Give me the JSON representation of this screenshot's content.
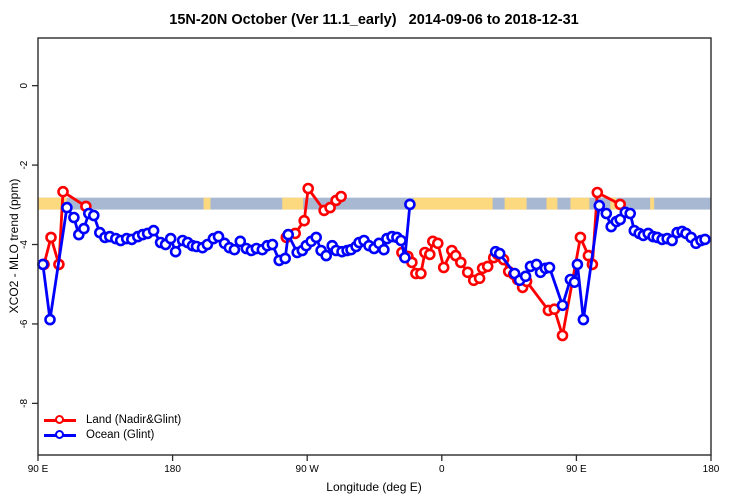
{
  "chart_data": {
    "type": "line",
    "title": "15N-20N October (Ver 11.1_early)   2014-09-06 to 2018-12-31",
    "xlabel": "Longitude (deg E)",
    "ylabel": "XCO2 - MLO trend (ppm)",
    "grid": false,
    "legend_position": "bottom-left",
    "xlim": [
      90,
      540
    ],
    "ylim": [
      -9.3,
      1.2
    ],
    "x_units_note": "longitude in degrees east, extended past 360 (axis wraps 90E-180-90W-0-90E-180)",
    "x_ticks": [
      {
        "value": 90,
        "label": "90 E"
      },
      {
        "value": 180,
        "label": "180"
      },
      {
        "value": 270,
        "label": "90 W"
      },
      {
        "value": 360,
        "label": "0"
      },
      {
        "value": 450,
        "label": "90 E"
      },
      {
        "value": 540,
        "label": "180"
      }
    ],
    "y_ticks": [
      {
        "value": 0,
        "label": "0"
      },
      {
        "value": -2,
        "label": "-2"
      },
      {
        "value": -4,
        "label": "-4"
      },
      {
        "value": -6,
        "label": "-6"
      },
      {
        "value": -8,
        "label": "-8"
      }
    ],
    "reference_band": {
      "color": "#a9b8d2",
      "from": -2.82,
      "to": -3.12,
      "highlight_color": "#fcd87e",
      "highlights": [
        [
          90,
          109.3
        ],
        [
          200.7,
          205.3
        ],
        [
          253.3,
          267.3
        ],
        [
          341.3,
          394
        ],
        [
          402,
          416.7
        ],
        [
          430,
          437.3
        ],
        [
          446,
          458.7
        ],
        [
          472.7,
          476.7
        ],
        [
          499.3,
          502
        ]
      ]
    },
    "series": [
      {
        "name": "Land (Nadir&Glint)",
        "color": "#ff0000",
        "point_format": [
          "longitude_deg_east_extended",
          "ppm"
        ],
        "segments": [
          [
            [
              94,
              -4.5
            ],
            [
              98.7,
              -3.82
            ],
            [
              104,
              -4.5
            ],
            [
              106.7,
              -2.67
            ],
            [
              122,
              -3.04
            ]
          ],
          [
            [
              256,
              -3.82
            ],
            [
              262,
              -3.72
            ],
            [
              268,
              -3.4
            ],
            [
              270.7,
              -2.59
            ],
            [
              281.3,
              -3.14
            ],
            [
              285.3,
              -3.07
            ],
            [
              289.3,
              -2.89
            ],
            [
              292.7,
              -2.79
            ]
          ],
          [
            [
              333.3,
              -4.2
            ],
            [
              337.3,
              -4.3
            ],
            [
              340,
              -4.45
            ],
            [
              342.7,
              -4.73
            ],
            [
              346,
              -4.73
            ],
            [
              348.7,
              -4.2
            ],
            [
              352,
              -4.25
            ],
            [
              354,
              -3.92
            ],
            [
              357.3,
              -3.97
            ],
            [
              361.3,
              -4.58
            ],
            [
              366.7,
              -4.15
            ],
            [
              369.3,
              -4.28
            ],
            [
              372.7,
              -4.45
            ],
            [
              377.3,
              -4.7
            ],
            [
              381.3,
              -4.9
            ],
            [
              385.3,
              -4.85
            ],
            [
              387.3,
              -4.6
            ],
            [
              390.7,
              -4.55
            ],
            [
              394.7,
              -4.33
            ],
            [
              397.3,
              -4.25
            ],
            [
              401.3,
              -4.38
            ],
            [
              404.7,
              -4.68
            ],
            [
              408,
              -4.75
            ],
            [
              410.7,
              -4.88
            ],
            [
              414,
              -5.08
            ],
            [
              416.7,
              -4.93
            ],
            [
              431.3,
              -5.66
            ],
            [
              435.3,
              -5.63
            ],
            [
              440.7,
              -6.29
            ],
            [
              452.7,
              -3.82
            ],
            [
              458,
              -4.28
            ],
            [
              460.7,
              -4.5
            ],
            [
              464,
              -2.69
            ],
            [
              479.3,
              -2.99
            ]
          ]
        ]
      },
      {
        "name": "Ocean (Glint)",
        "color": "#0000ff",
        "point_format": [
          "longitude_deg_east_extended",
          "ppm"
        ],
        "segments": [
          [
            [
              93.3,
              -4.5
            ],
            [
              98,
              -5.89
            ],
            [
              109.3,
              -3.07
            ],
            [
              114,
              -3.32
            ],
            [
              117.3,
              -3.75
            ],
            [
              120.7,
              -3.6
            ],
            [
              124,
              -3.22
            ],
            [
              127.3,
              -3.27
            ],
            [
              131.3,
              -3.7
            ],
            [
              134.7,
              -3.82
            ],
            [
              138,
              -3.8
            ],
            [
              142,
              -3.85
            ],
            [
              145.3,
              -3.9
            ],
            [
              149.3,
              -3.85
            ],
            [
              152.7,
              -3.87
            ],
            [
              156.7,
              -3.8
            ],
            [
              160,
              -3.75
            ],
            [
              163.3,
              -3.72
            ],
            [
              167.3,
              -3.65
            ],
            [
              172,
              -3.95
            ],
            [
              175.3,
              -4.0
            ],
            [
              178.7,
              -3.85
            ],
            [
              182,
              -4.18
            ],
            [
              186.7,
              -3.9
            ],
            [
              190,
              -3.95
            ],
            [
              193.3,
              -4.03
            ],
            [
              196,
              -4.05
            ],
            [
              200,
              -4.08
            ],
            [
              203.3,
              -4.0
            ],
            [
              207.3,
              -3.85
            ],
            [
              210.7,
              -3.8
            ],
            [
              214.7,
              -3.97
            ],
            [
              218,
              -4.08
            ],
            [
              221.3,
              -4.13
            ],
            [
              225.3,
              -3.92
            ],
            [
              229.3,
              -4.1
            ],
            [
              232.7,
              -4.15
            ],
            [
              236,
              -4.1
            ],
            [
              240,
              -4.13
            ],
            [
              243.3,
              -4.03
            ],
            [
              246.7,
              -4.0
            ],
            [
              251.3,
              -4.4
            ],
            [
              255.3,
              -4.35
            ],
            [
              257.3,
              -3.75
            ],
            [
              263.3,
              -4.2
            ],
            [
              266.7,
              -4.15
            ],
            [
              269.3,
              -4.03
            ],
            [
              272.7,
              -3.92
            ],
            [
              276,
              -3.82
            ],
            [
              279.3,
              -4.15
            ],
            [
              282.7,
              -4.28
            ],
            [
              286.7,
              -4.03
            ],
            [
              289.3,
              -4.15
            ],
            [
              293.3,
              -4.18
            ],
            [
              296.7,
              -4.15
            ],
            [
              299.3,
              -4.13
            ],
            [
              302.7,
              -4.05
            ],
            [
              304.7,
              -3.95
            ],
            [
              308,
              -3.9
            ],
            [
              311.3,
              -4.03
            ],
            [
              314.7,
              -4.1
            ],
            [
              318,
              -3.97
            ],
            [
              321.3,
              -4.13
            ],
            [
              323.3,
              -3.85
            ],
            [
              326.7,
              -3.8
            ],
            [
              330,
              -3.82
            ],
            [
              332.7,
              -3.9
            ],
            [
              335.3,
              -4.33
            ],
            [
              338.7,
              -2.99
            ]
          ],
          [
            [
              396,
              -4.18
            ],
            [
              398.7,
              -4.23
            ],
            [
              408.7,
              -4.73
            ],
            [
              412,
              -4.9
            ],
            [
              416,
              -4.8
            ],
            [
              419.3,
              -4.55
            ],
            [
              423.3,
              -4.5
            ],
            [
              426,
              -4.7
            ],
            [
              429.3,
              -4.6
            ],
            [
              432,
              -4.58
            ],
            [
              440.7,
              -5.53
            ],
            [
              446,
              -4.88
            ],
            [
              448.7,
              -4.95
            ],
            [
              450.7,
              -4.5
            ],
            [
              454.7,
              -5.89
            ],
            [
              465.3,
              -3.02
            ],
            [
              470,
              -3.22
            ],
            [
              473.3,
              -3.55
            ],
            [
              476.7,
              -3.42
            ],
            [
              479.3,
              -3.37
            ],
            [
              482.7,
              -3.19
            ],
            [
              486,
              -3.22
            ],
            [
              488.7,
              -3.65
            ],
            [
              492,
              -3.72
            ],
            [
              494.7,
              -3.77
            ],
            [
              498,
              -3.72
            ],
            [
              501.3,
              -3.8
            ],
            [
              504,
              -3.82
            ],
            [
              507.3,
              -3.87
            ],
            [
              510.7,
              -3.85
            ],
            [
              514,
              -3.9
            ],
            [
              517.3,
              -3.7
            ],
            [
              520.7,
              -3.67
            ],
            [
              523.3,
              -3.72
            ],
            [
              526.7,
              -3.82
            ],
            [
              530,
              -3.97
            ],
            [
              533.3,
              -3.9
            ],
            [
              536,
              -3.87
            ]
          ]
        ]
      }
    ]
  }
}
